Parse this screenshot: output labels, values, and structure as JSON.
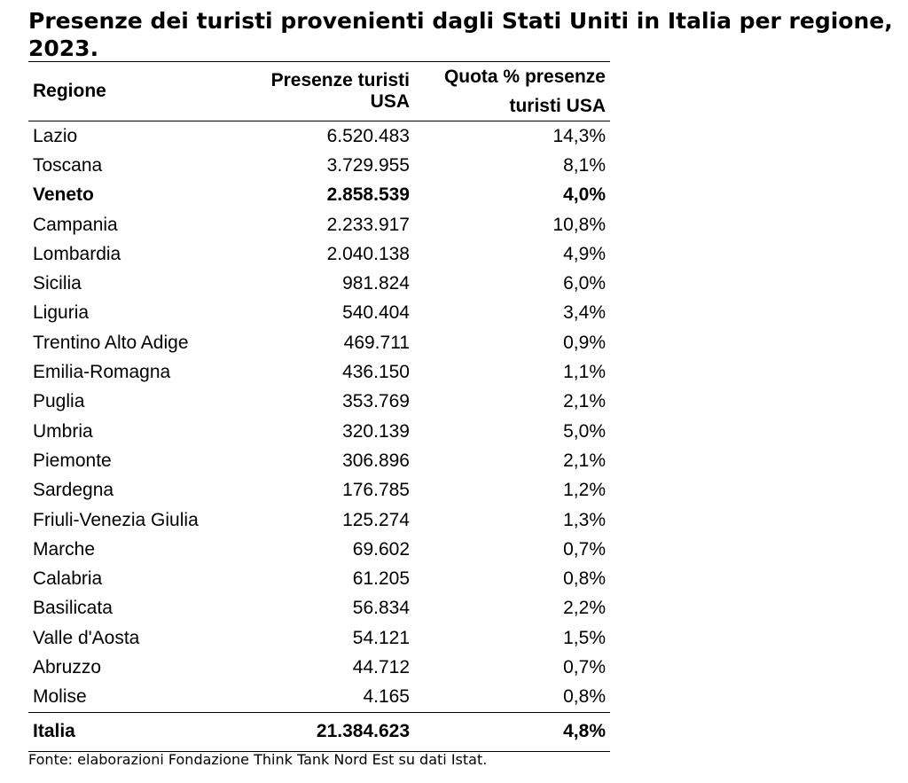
{
  "title": "Presenze dei turisti provenienti dagli Stati Uniti in Italia per regione, 2023.",
  "source": "Fonte: elaborazioni Fondazione Think Tank Nord Est su dati Istat.",
  "chart_data": {
    "type": "table",
    "columns": [
      "Regione",
      "Presenze turisti USA",
      "Quota % presenze turisti USA"
    ],
    "column_header_lines": {
      "quota_line1": "Quota % presenze",
      "quota_line2": "turisti USA"
    },
    "rows": [
      {
        "region": "Lazio",
        "presenze": "6.520.483",
        "quota": "14,3%",
        "highlight": false
      },
      {
        "region": "Toscana",
        "presenze": "3.729.955",
        "quota": "8,1%",
        "highlight": false
      },
      {
        "region": "Veneto",
        "presenze": "2.858.539",
        "quota": "4,0%",
        "highlight": true
      },
      {
        "region": "Campania",
        "presenze": "2.233.917",
        "quota": "10,8%",
        "highlight": false
      },
      {
        "region": "Lombardia",
        "presenze": "2.040.138",
        "quota": "4,9%",
        "highlight": false
      },
      {
        "region": "Sicilia",
        "presenze": "981.824",
        "quota": "6,0%",
        "highlight": false
      },
      {
        "region": "Liguria",
        "presenze": "540.404",
        "quota": "3,4%",
        "highlight": false
      },
      {
        "region": "Trentino Alto Adige",
        "presenze": "469.711",
        "quota": "0,9%",
        "highlight": false
      },
      {
        "region": "Emilia-Romagna",
        "presenze": "436.150",
        "quota": "1,1%",
        "highlight": false
      },
      {
        "region": "Puglia",
        "presenze": "353.769",
        "quota": "2,1%",
        "highlight": false
      },
      {
        "region": "Umbria",
        "presenze": "320.139",
        "quota": "5,0%",
        "highlight": false
      },
      {
        "region": "Piemonte",
        "presenze": "306.896",
        "quota": "2,1%",
        "highlight": false
      },
      {
        "region": "Sardegna",
        "presenze": "176.785",
        "quota": "1,2%",
        "highlight": false
      },
      {
        "region": "Friuli-Venezia Giulia",
        "presenze": "125.274",
        "quota": "1,3%",
        "highlight": false
      },
      {
        "region": "Marche",
        "presenze": "69.602",
        "quota": "0,7%",
        "highlight": false
      },
      {
        "region": "Calabria",
        "presenze": "61.205",
        "quota": "0,8%",
        "highlight": false
      },
      {
        "region": "Basilicata",
        "presenze": "56.834",
        "quota": "2,2%",
        "highlight": false
      },
      {
        "region": "Valle d'Aosta",
        "presenze": "54.121",
        "quota": "1,5%",
        "highlight": false
      },
      {
        "region": "Abruzzo",
        "presenze": "44.712",
        "quota": "0,7%",
        "highlight": false
      },
      {
        "region": "Molise",
        "presenze": "4.165",
        "quota": "0,8%",
        "highlight": false
      }
    ],
    "total": {
      "region": "Italia",
      "presenze": "21.384.623",
      "quota": "4,8%"
    }
  }
}
